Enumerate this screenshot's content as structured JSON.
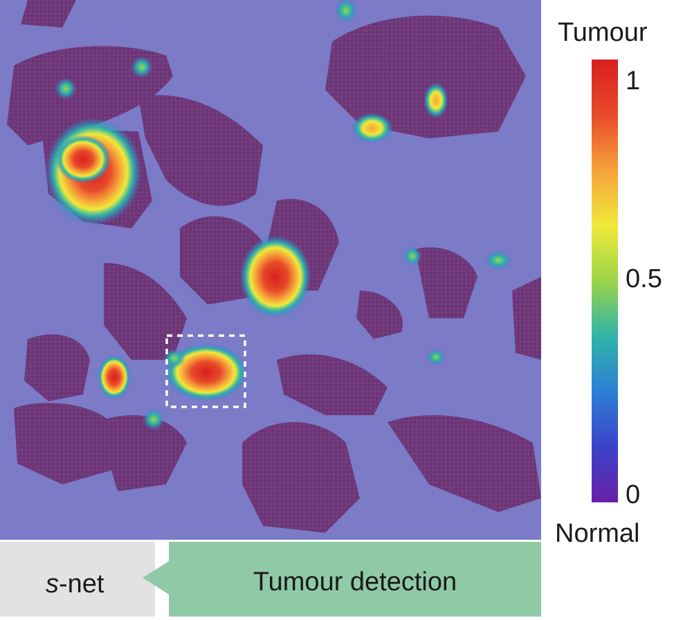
{
  "colorbar": {
    "top_label": "Tumour",
    "bottom_label": "Normal",
    "ticks": {
      "max": "1",
      "mid": "0.5",
      "min": "0"
    },
    "stops": [
      "#6a1fa8",
      "#3b43c9",
      "#2c7fd6",
      "#2fb4a8",
      "#9bd449",
      "#f0e93a",
      "#f6a23a",
      "#e84a2a",
      "#d81f1f"
    ]
  },
  "footer": {
    "left_italic": "s",
    "left_rest": "-net",
    "right_label": "Tumour detection",
    "left_color": "#e2e2e2",
    "right_color": "#8fc9a6"
  },
  "overlay": {
    "background_color": "#7b7bc8",
    "tissue_color": "#6e2a6a",
    "roi_box": "dashed-white"
  }
}
